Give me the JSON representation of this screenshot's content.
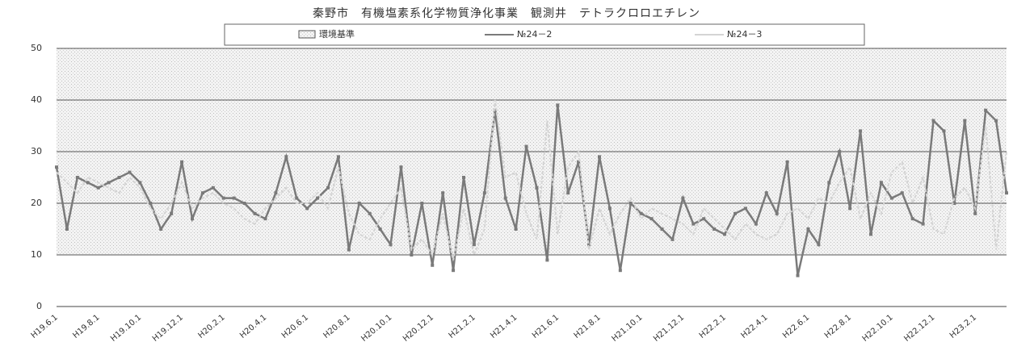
{
  "chart_data": {
    "type": "line",
    "title": "秦野市　有機塩素系化学物質浄化事業　観測井　テトラクロロエチレン",
    "standard": {
      "name": "環境基準",
      "range": [
        10,
        50
      ]
    },
    "categories": [
      "H19.6.1",
      null,
      null,
      null,
      "H19.8.1",
      null,
      null,
      null,
      "H19.10.1",
      null,
      null,
      null,
      "H19.12.1",
      null,
      null,
      null,
      "H20.2.1",
      null,
      null,
      null,
      "H20.4.1",
      null,
      null,
      null,
      "H20.6.1",
      null,
      null,
      null,
      "H20.8.1",
      null,
      null,
      null,
      "H20.10.1",
      null,
      null,
      null,
      "H20.12.1",
      null,
      null,
      null,
      "H21.2.1",
      null,
      null,
      null,
      "H21.4.1",
      null,
      null,
      null,
      "H21.6.1",
      null,
      null,
      null,
      "H21.8.1",
      null,
      null,
      null,
      "H21.10.1",
      null,
      null,
      null,
      "H21.12.1",
      null,
      null,
      null,
      "H22.2.1",
      null,
      null,
      null,
      "H22.4.1",
      null,
      null,
      null,
      "H22.6.1",
      null,
      null,
      null,
      "H22.8.1",
      null,
      null,
      null,
      "H22.10.1",
      null,
      null,
      null,
      "H22.12.1",
      null,
      null,
      null,
      "H23.2.1",
      null,
      null,
      null
    ],
    "series": [
      {
        "name": "№24－2",
        "color": "#7a7a7a",
        "marker": true,
        "values": [
          27,
          15,
          25,
          24,
          23,
          24,
          25,
          26,
          24,
          20,
          15,
          18,
          28,
          17,
          22,
          23,
          21,
          21,
          20,
          18,
          17,
          22,
          29,
          21,
          19,
          21,
          23,
          29,
          11,
          20,
          18,
          15,
          12,
          27,
          10,
          20,
          8,
          22,
          7,
          25,
          12,
          22,
          38,
          21,
          15,
          31,
          23,
          9,
          39,
          22,
          28,
          12,
          29,
          19,
          7,
          20,
          18,
          17,
          15,
          13,
          21,
          16,
          17,
          15,
          14,
          18,
          19,
          16,
          22,
          18,
          28,
          6,
          15,
          12,
          24,
          30,
          19,
          34,
          14,
          24,
          21,
          22,
          17,
          16,
          36,
          34,
          20,
          36,
          18,
          38,
          36,
          22
        ]
      },
      {
        "name": "№24－3",
        "color": "#d4d4d4",
        "marker": false,
        "values": [
          26,
          24,
          22,
          25,
          24,
          23,
          22,
          25,
          23,
          19,
          17,
          20,
          24,
          19,
          21,
          22,
          20,
          19,
          17,
          16,
          19,
          21,
          23,
          20,
          20,
          22,
          19,
          27,
          18,
          14,
          13,
          17,
          20,
          23,
          11,
          13,
          10,
          18,
          9,
          19,
          10,
          15,
          40,
          25,
          26,
          18,
          13,
          36,
          14,
          27,
          30,
          11,
          19,
          14,
          18,
          21,
          17,
          19,
          18,
          17,
          16,
          14,
          19,
          17,
          15,
          13,
          16,
          14,
          13,
          14,
          18,
          19,
          17,
          21,
          20,
          24,
          27,
          17,
          22,
          18,
          26,
          28,
          20,
          25,
          15,
          14,
          21,
          23,
          19,
          35,
          11,
          30
        ]
      }
    ],
    "ylim": [
      0,
      50
    ],
    "yticks": [
      0,
      10,
      20,
      30,
      40,
      50
    ],
    "grid": true
  }
}
